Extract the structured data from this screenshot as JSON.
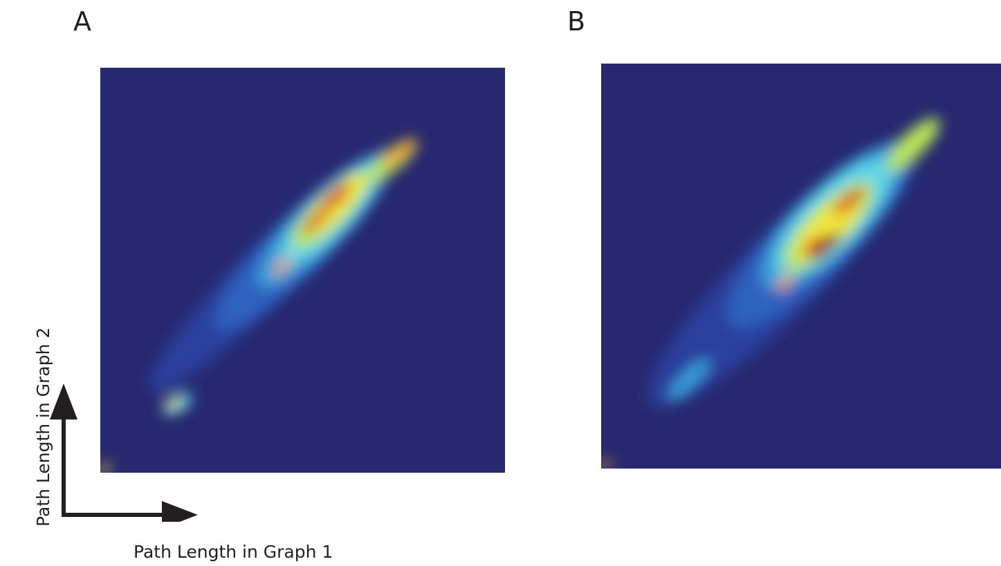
{
  "panels": [
    {
      "id": "A",
      "label": "A"
    },
    {
      "id": "B",
      "label": "B"
    }
  ],
  "axes": {
    "xlabel": "Path Length in Graph 1",
    "ylabel": "Path Length in Graph 2"
  },
  "colormap": [
    "#27286f",
    "#2c3f9c",
    "#2f62c0",
    "#3aa0dc",
    "#5fd6e8",
    "#b9e65a",
    "#f2e73a",
    "#f6a329",
    "#d61f26",
    "#8c1414"
  ],
  "chart_data": [
    {
      "type": "heatmap",
      "title": "A",
      "xlabel": "Path Length in Graph 1",
      "ylabel": "Path Length in Graph 2",
      "background_color": "#27286f",
      "description_of_mass": "density concentrated along the diagonal",
      "blobs": [
        {
          "x": 0.42,
          "y": 0.5,
          "sx": 0.42,
          "sy": 0.07,
          "angle": 45,
          "level": 1
        },
        {
          "x": 0.5,
          "y": 0.57,
          "sx": 0.3,
          "sy": 0.07,
          "angle": 45,
          "level": 2
        },
        {
          "x": 0.55,
          "y": 0.62,
          "sx": 0.22,
          "sy": 0.06,
          "angle": 45,
          "level": 3
        },
        {
          "x": 0.57,
          "y": 0.64,
          "sx": 0.17,
          "sy": 0.05,
          "angle": 45,
          "level": 4
        },
        {
          "x": 0.57,
          "y": 0.65,
          "sx": 0.13,
          "sy": 0.04,
          "angle": 45,
          "level": 5
        },
        {
          "x": 0.58,
          "y": 0.66,
          "sx": 0.1,
          "sy": 0.03,
          "angle": 45,
          "level": 6
        },
        {
          "x": 0.72,
          "y": 0.77,
          "sx": 0.08,
          "sy": 0.025,
          "angle": 40,
          "level": 5
        },
        {
          "x": 0.74,
          "y": 0.79,
          "sx": 0.05,
          "sy": 0.015,
          "angle": 40,
          "level": 7
        },
        {
          "x": 0.58,
          "y": 0.68,
          "sx": 0.05,
          "sy": 0.015,
          "angle": 45,
          "level": 8
        },
        {
          "x": 0.53,
          "y": 0.62,
          "sx": 0.04,
          "sy": 0.012,
          "angle": 45,
          "level": 8
        },
        {
          "x": 0.45,
          "y": 0.51,
          "sx": 0.03,
          "sy": 0.01,
          "angle": 45,
          "level": 7
        },
        {
          "x": 0.19,
          "y": 0.17,
          "sx": 0.04,
          "sy": 0.02,
          "angle": 30,
          "level": 4
        },
        {
          "x": 0.18,
          "y": 0.17,
          "sx": 0.02,
          "sy": 0.01,
          "angle": 30,
          "level": 6
        },
        {
          "x": 0.01,
          "y": 0.01,
          "sx": 0.015,
          "sy": 0.01,
          "angle": 30,
          "level": 6
        }
      ]
    },
    {
      "type": "heatmap",
      "title": "B",
      "xlabel": "Path Length in Graph 1",
      "ylabel": "Path Length in Graph 2",
      "background_color": "#27286f",
      "description_of_mass": "density concentrated along the diagonal, broader",
      "blobs": [
        {
          "x": 0.45,
          "y": 0.48,
          "sx": 0.46,
          "sy": 0.1,
          "angle": 45,
          "level": 1
        },
        {
          "x": 0.55,
          "y": 0.58,
          "sx": 0.32,
          "sy": 0.09,
          "angle": 45,
          "level": 2
        },
        {
          "x": 0.58,
          "y": 0.62,
          "sx": 0.24,
          "sy": 0.08,
          "angle": 45,
          "level": 3
        },
        {
          "x": 0.58,
          "y": 0.62,
          "sx": 0.19,
          "sy": 0.07,
          "angle": 45,
          "level": 4
        },
        {
          "x": 0.57,
          "y": 0.6,
          "sx": 0.15,
          "sy": 0.05,
          "angle": 45,
          "level": 5
        },
        {
          "x": 0.57,
          "y": 0.6,
          "sx": 0.11,
          "sy": 0.04,
          "angle": 45,
          "level": 6
        },
        {
          "x": 0.78,
          "y": 0.8,
          "sx": 0.09,
          "sy": 0.03,
          "angle": 45,
          "level": 5
        },
        {
          "x": 0.56,
          "y": 0.55,
          "sx": 0.05,
          "sy": 0.015,
          "angle": 40,
          "level": 9
        },
        {
          "x": 0.62,
          "y": 0.66,
          "sx": 0.05,
          "sy": 0.015,
          "angle": 40,
          "level": 8
        },
        {
          "x": 0.53,
          "y": 0.55,
          "sx": 0.03,
          "sy": 0.012,
          "angle": 40,
          "level": 8
        },
        {
          "x": 0.46,
          "y": 0.46,
          "sx": 0.03,
          "sy": 0.01,
          "angle": 40,
          "level": 7
        },
        {
          "x": 0.22,
          "y": 0.22,
          "sx": 0.07,
          "sy": 0.02,
          "angle": 45,
          "level": 3
        },
        {
          "x": 0.01,
          "y": 0.01,
          "sx": 0.015,
          "sy": 0.01,
          "angle": 30,
          "level": 7
        }
      ]
    }
  ]
}
